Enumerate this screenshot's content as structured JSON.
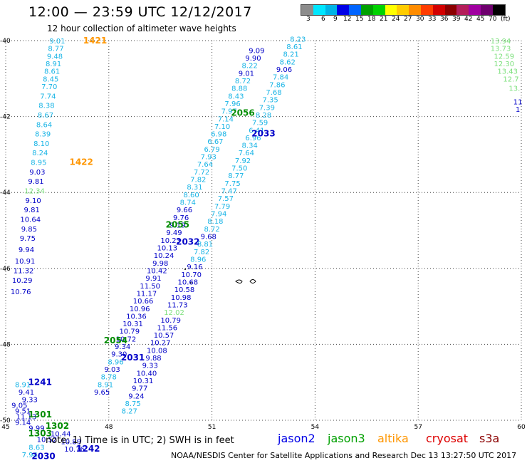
{
  "header": {
    "title": "12:00 — 23:59 UTC 12/12/2017",
    "subtitle": "12 hour collection of altimeter wave heights"
  },
  "legend": {
    "colors": [
      "#8c8c8c",
      "#00e6ff",
      "#00b4e6",
      "#0000e6",
      "#0064ff",
      "#00a000",
      "#00d200",
      "#ffff00",
      "#ffcc00",
      "#ff8c00",
      "#ff3c00",
      "#d20000",
      "#8b0000",
      "#b41e5a",
      "#a000a0",
      "#6e006e",
      "#000000"
    ],
    "labels": [
      "3",
      "6",
      "9",
      "12",
      "15",
      "18",
      "21",
      "24",
      "27",
      "30",
      "33",
      "36",
      "39",
      "42",
      "45",
      "70",
      "(ft)"
    ]
  },
  "axes": {
    "x_ticks": [
      "45",
      "48",
      "51",
      "54",
      "57",
      "60"
    ],
    "y_ticks": [
      "-40",
      "-42",
      "-44",
      "-46",
      "-48",
      "-50"
    ]
  },
  "map_data": {
    "colors": {
      "j2": "#0000c8",
      "cy": "#18b4e6",
      "gr": "#008c00",
      "lg": "#7ce07c",
      "or": "#ff9600"
    },
    "labels": [
      {
        "lon": 46.5,
        "lat": -40.0,
        "t": "9.01",
        "c": "cy"
      },
      {
        "lon": 46.46,
        "lat": -40.2,
        "t": "8.77",
        "c": "cy"
      },
      {
        "lon": 46.43,
        "lat": -40.4,
        "t": "9.48",
        "c": "cy"
      },
      {
        "lon": 46.39,
        "lat": -40.6,
        "t": "8.91",
        "c": "cy"
      },
      {
        "lon": 46.35,
        "lat": -40.8,
        "t": "8.61",
        "c": "cy"
      },
      {
        "lon": 46.31,
        "lat": -41.0,
        "t": "8.45",
        "c": "cy"
      },
      {
        "lon": 46.27,
        "lat": -41.2,
        "t": "7.70",
        "c": "cy"
      },
      {
        "lon": 46.23,
        "lat": -41.45,
        "t": "7.74",
        "c": "cy"
      },
      {
        "lon": 46.19,
        "lat": -41.7,
        "t": "8.38",
        "c": "cy"
      },
      {
        "lon": 46.16,
        "lat": -41.95,
        "t": "8.67",
        "c": "cy"
      },
      {
        "lon": 46.12,
        "lat": -42.2,
        "t": "8.64",
        "c": "cy"
      },
      {
        "lon": 46.08,
        "lat": -42.45,
        "t": "8.39",
        "c": "cy"
      },
      {
        "lon": 46.04,
        "lat": -42.7,
        "t": "8.10",
        "c": "cy"
      },
      {
        "lon": 46.0,
        "lat": -42.95,
        "t": "8.24",
        "c": "cy"
      },
      {
        "lon": 45.96,
        "lat": -43.2,
        "t": "8.95",
        "c": "cy"
      },
      {
        "lon": 45.92,
        "lat": -43.45,
        "t": "9.03",
        "c": "j2"
      },
      {
        "lon": 45.88,
        "lat": -43.7,
        "t": "9.81",
        "c": "j2"
      },
      {
        "lon": 45.84,
        "lat": -43.95,
        "t": "12.34",
        "c": "lg"
      },
      {
        "lon": 45.8,
        "lat": -44.2,
        "t": "9.10",
        "c": "j2"
      },
      {
        "lon": 45.76,
        "lat": -44.45,
        "t": "9.81",
        "c": "j2"
      },
      {
        "lon": 45.72,
        "lat": -44.7,
        "t": "10.64",
        "c": "j2"
      },
      {
        "lon": 45.68,
        "lat": -44.95,
        "t": "9.85",
        "c": "j2"
      },
      {
        "lon": 45.64,
        "lat": -45.2,
        "t": "9.75",
        "c": "j2"
      },
      {
        "lon": 45.6,
        "lat": -45.5,
        "t": "9.94",
        "c": "j2"
      },
      {
        "lon": 45.56,
        "lat": -45.8,
        "t": "10.91",
        "c": "j2"
      },
      {
        "lon": 45.52,
        "lat": -46.05,
        "t": "11.32",
        "c": "j2"
      },
      {
        "lon": 45.48,
        "lat": -46.3,
        "t": "10.29",
        "c": "j2"
      },
      {
        "lon": 45.44,
        "lat": -46.6,
        "t": "10.76",
        "c": "j2"
      },
      {
        "lon": 47.6,
        "lat": -40.0,
        "t": "1421",
        "c": "or",
        "b": true
      },
      {
        "lon": 47.2,
        "lat": -43.2,
        "t": "1422",
        "c": "or",
        "b": true
      },
      {
        "lon": 53.5,
        "lat": -39.95,
        "t": "8.23",
        "c": "cy"
      },
      {
        "lon": 53.4,
        "lat": -40.15,
        "t": "8.61",
        "c": "cy"
      },
      {
        "lon": 53.3,
        "lat": -40.35,
        "t": "8.21",
        "c": "cy"
      },
      {
        "lon": 53.2,
        "lat": -40.55,
        "t": "8.62",
        "c": "cy"
      },
      {
        "lon": 53.1,
        "lat": -40.75,
        "t": "9.06",
        "c": "j2"
      },
      {
        "lon": 53.0,
        "lat": -40.95,
        "t": "7.84",
        "c": "cy"
      },
      {
        "lon": 52.9,
        "lat": -41.15,
        "t": "7.86",
        "c": "cy"
      },
      {
        "lon": 52.8,
        "lat": -41.35,
        "t": "7.68",
        "c": "cy"
      },
      {
        "lon": 52.7,
        "lat": -41.55,
        "t": "7.35",
        "c": "cy"
      },
      {
        "lon": 52.6,
        "lat": -41.75,
        "t": "7.39",
        "c": "cy"
      },
      {
        "lon": 52.5,
        "lat": -41.95,
        "t": "8.28",
        "c": "cy"
      },
      {
        "lon": 52.4,
        "lat": -42.15,
        "t": "7.59",
        "c": "cy"
      },
      {
        "lon": 52.3,
        "lat": -42.35,
        "t": "6.41",
        "c": "cy"
      },
      {
        "lon": 52.2,
        "lat": -42.55,
        "t": "6.96",
        "c": "cy"
      },
      {
        "lon": 52.1,
        "lat": -42.75,
        "t": "8.34",
        "c": "cy"
      },
      {
        "lon": 52.0,
        "lat": -42.95,
        "t": "7.64",
        "c": "cy"
      },
      {
        "lon": 51.9,
        "lat": -43.15,
        "t": "7.92",
        "c": "cy"
      },
      {
        "lon": 51.8,
        "lat": -43.35,
        "t": "7.50",
        "c": "cy"
      },
      {
        "lon": 51.7,
        "lat": -43.55,
        "t": "8.77",
        "c": "cy"
      },
      {
        "lon": 51.6,
        "lat": -43.75,
        "t": "7.75",
        "c": "cy"
      },
      {
        "lon": 51.5,
        "lat": -43.95,
        "t": "7.47",
        "c": "cy"
      },
      {
        "lon": 51.4,
        "lat": -44.15,
        "t": "7.57",
        "c": "cy"
      },
      {
        "lon": 51.3,
        "lat": -44.35,
        "t": "7.79",
        "c": "cy"
      },
      {
        "lon": 51.2,
        "lat": -44.55,
        "t": "7.94",
        "c": "cy"
      },
      {
        "lon": 51.1,
        "lat": -44.75,
        "t": "8.18",
        "c": "cy"
      },
      {
        "lon": 51.0,
        "lat": -44.95,
        "t": "8.72",
        "c": "cy"
      },
      {
        "lon": 50.9,
        "lat": -45.15,
        "t": "9.68",
        "c": "j2"
      },
      {
        "lon": 50.8,
        "lat": -45.35,
        "t": "8.81",
        "c": "cy"
      },
      {
        "lon": 50.7,
        "lat": -45.55,
        "t": "7.82",
        "c": "cy"
      },
      {
        "lon": 50.6,
        "lat": -45.75,
        "t": "8.96",
        "c": "cy"
      },
      {
        "lon": 50.5,
        "lat": -45.95,
        "t": "9.16",
        "c": "j2"
      },
      {
        "lon": 50.4,
        "lat": -46.15,
        "t": "10.70",
        "c": "j2"
      },
      {
        "lon": 50.3,
        "lat": -46.35,
        "t": "10.68",
        "c": "j2"
      },
      {
        "lon": 50.2,
        "lat": -46.55,
        "t": "10.58",
        "c": "j2"
      },
      {
        "lon": 50.1,
        "lat": -46.75,
        "t": "10.98",
        "c": "j2"
      },
      {
        "lon": 50.0,
        "lat": -46.95,
        "t": "11.73",
        "c": "j2"
      },
      {
        "lon": 49.9,
        "lat": -47.15,
        "t": "12.02",
        "c": "lg"
      },
      {
        "lon": 49.8,
        "lat": -47.35,
        "t": "10.79",
        "c": "j2"
      },
      {
        "lon": 49.7,
        "lat": -47.55,
        "t": "11.56",
        "c": "j2"
      },
      {
        "lon": 49.6,
        "lat": -47.75,
        "t": "10.57",
        "c": "j2"
      },
      {
        "lon": 49.5,
        "lat": -47.95,
        "t": "10.27",
        "c": "j2"
      },
      {
        "lon": 49.4,
        "lat": -48.15,
        "t": "10.08",
        "c": "j2"
      },
      {
        "lon": 49.3,
        "lat": -48.35,
        "t": "9.88",
        "c": "j2"
      },
      {
        "lon": 49.2,
        "lat": -48.55,
        "t": "9.33",
        "c": "j2"
      },
      {
        "lon": 49.1,
        "lat": -48.75,
        "t": "10.40",
        "c": "j2"
      },
      {
        "lon": 49.0,
        "lat": -48.95,
        "t": "10.31",
        "c": "j2"
      },
      {
        "lon": 48.9,
        "lat": -49.15,
        "t": "9.77",
        "c": "j2"
      },
      {
        "lon": 48.8,
        "lat": -49.35,
        "t": "9.24",
        "c": "j2"
      },
      {
        "lon": 48.7,
        "lat": -49.55,
        "t": "8.75",
        "c": "cy"
      },
      {
        "lon": 48.6,
        "lat": -49.75,
        "t": "8.27",
        "c": "cy"
      },
      {
        "lon": 52.3,
        "lat": -40.25,
        "t": "9.09",
        "c": "j2"
      },
      {
        "lon": 52.2,
        "lat": -40.45,
        "t": "9.90",
        "c": "j2"
      },
      {
        "lon": 52.1,
        "lat": -40.65,
        "t": "8.22",
        "c": "cy"
      },
      {
        "lon": 52.0,
        "lat": -40.85,
        "t": "9.01",
        "c": "j2"
      },
      {
        "lon": 51.9,
        "lat": -41.05,
        "t": "8.72",
        "c": "cy"
      },
      {
        "lon": 51.8,
        "lat": -41.25,
        "t": "8.88",
        "c": "cy"
      },
      {
        "lon": 51.7,
        "lat": -41.45,
        "t": "8.43",
        "c": "cy"
      },
      {
        "lon": 51.6,
        "lat": -41.65,
        "t": "7.96",
        "c": "cy"
      },
      {
        "lon": 51.5,
        "lat": -41.85,
        "t": "7.97",
        "c": "cy"
      },
      {
        "lon": 51.4,
        "lat": -42.05,
        "t": "7.14",
        "c": "cy"
      },
      {
        "lon": 51.3,
        "lat": -42.25,
        "t": "7.10",
        "c": "cy"
      },
      {
        "lon": 51.2,
        "lat": -42.45,
        "t": "6.98",
        "c": "cy"
      },
      {
        "lon": 51.1,
        "lat": -42.65,
        "t": "6.67",
        "c": "cy"
      },
      {
        "lon": 51.0,
        "lat": -42.85,
        "t": "6.79",
        "c": "cy"
      },
      {
        "lon": 50.9,
        "lat": -43.05,
        "t": "7.93",
        "c": "cy"
      },
      {
        "lon": 50.8,
        "lat": -43.25,
        "t": "7.64",
        "c": "cy"
      },
      {
        "lon": 50.7,
        "lat": -43.45,
        "t": "7.72",
        "c": "cy"
      },
      {
        "lon": 50.6,
        "lat": -43.65,
        "t": "7.82",
        "c": "cy"
      },
      {
        "lon": 50.5,
        "lat": -43.85,
        "t": "8.31",
        "c": "cy"
      },
      {
        "lon": 50.4,
        "lat": -44.05,
        "t": "8.60",
        "c": "cy"
      },
      {
        "lon": 50.3,
        "lat": -44.25,
        "t": "8.74",
        "c": "cy"
      },
      {
        "lon": 50.2,
        "lat": -44.45,
        "t": "9.66",
        "c": "j2"
      },
      {
        "lon": 50.1,
        "lat": -44.65,
        "t": "9.76",
        "c": "j2"
      },
      {
        "lon": 50.0,
        "lat": -44.85,
        "t": "9.19",
        "c": "j2"
      },
      {
        "lon": 49.9,
        "lat": -45.05,
        "t": "9.49",
        "c": "j2"
      },
      {
        "lon": 49.8,
        "lat": -45.25,
        "t": "10.23",
        "c": "j2"
      },
      {
        "lon": 49.7,
        "lat": -45.45,
        "t": "10.13",
        "c": "j2"
      },
      {
        "lon": 49.6,
        "lat": -45.65,
        "t": "10.24",
        "c": "j2"
      },
      {
        "lon": 49.5,
        "lat": -45.85,
        "t": "9.98",
        "c": "j2"
      },
      {
        "lon": 49.4,
        "lat": -46.05,
        "t": "10.42",
        "c": "j2"
      },
      {
        "lon": 49.3,
        "lat": -46.25,
        "t": "9.91",
        "c": "j2"
      },
      {
        "lon": 49.2,
        "lat": -46.45,
        "t": "11.50",
        "c": "j2"
      },
      {
        "lon": 49.1,
        "lat": -46.65,
        "t": "11.17",
        "c": "j2"
      },
      {
        "lon": 49.0,
        "lat": -46.85,
        "t": "10.66",
        "c": "j2"
      },
      {
        "lon": 48.9,
        "lat": -47.05,
        "t": "10.96",
        "c": "j2"
      },
      {
        "lon": 48.8,
        "lat": -47.25,
        "t": "10.36",
        "c": "j2"
      },
      {
        "lon": 48.7,
        "lat": -47.45,
        "t": "10.31",
        "c": "j2"
      },
      {
        "lon": 48.6,
        "lat": -47.65,
        "t": "10.79",
        "c": "j2"
      },
      {
        "lon": 48.5,
        "lat": -47.85,
        "t": "10.72",
        "c": "j2"
      },
      {
        "lon": 48.4,
        "lat": -48.05,
        "t": "9.34",
        "c": "j2"
      },
      {
        "lon": 48.3,
        "lat": -48.25,
        "t": "9.30",
        "c": "j2"
      },
      {
        "lon": 48.2,
        "lat": -48.45,
        "t": "8.96",
        "c": "cy"
      },
      {
        "lon": 48.1,
        "lat": -48.65,
        "t": "9.03",
        "c": "j2"
      },
      {
        "lon": 48.0,
        "lat": -48.85,
        "t": "8.78",
        "c": "cy"
      },
      {
        "lon": 47.9,
        "lat": -49.05,
        "t": "8.91",
        "c": "cy"
      },
      {
        "lon": 47.8,
        "lat": -49.25,
        "t": "9.65",
        "c": "j2"
      },
      {
        "lon": 45.5,
        "lat": -49.05,
        "t": "8.91",
        "c": "cy"
      },
      {
        "lon": 45.6,
        "lat": -49.25,
        "t": "9.41",
        "c": "j2"
      },
      {
        "lon": 45.7,
        "lat": -49.45,
        "t": "9.33",
        "c": "j2"
      },
      {
        "lon": 45.4,
        "lat": -49.6,
        "t": "9.05",
        "c": "j2"
      },
      {
        "lon": 45.5,
        "lat": -49.75,
        "t": "9.51",
        "c": "j2"
      },
      {
        "lon": 45.6,
        "lat": -49.9,
        "t": "11.13",
        "c": "j2"
      },
      {
        "lon": 45.5,
        "lat": -50.05,
        "t": "9.14",
        "c": "j2"
      },
      {
        "lon": 45.9,
        "lat": -50.2,
        "t": "9.99",
        "c": "j2"
      },
      {
        "lon": 46.6,
        "lat": -50.35,
        "t": "10.44",
        "c": "j2"
      },
      {
        "lon": 46.2,
        "lat": -50.5,
        "t": "10.52",
        "c": "j2"
      },
      {
        "lon": 46.9,
        "lat": -50.55,
        "t": "10.89",
        "c": "j2"
      },
      {
        "lon": 47.0,
        "lat": -50.75,
        "t": "10.76",
        "c": "j2"
      },
      {
        "lon": 45.9,
        "lat": -50.7,
        "t": "8.63",
        "c": "cy"
      },
      {
        "lon": 45.7,
        "lat": -50.9,
        "t": "7.94",
        "c": "cy"
      },
      {
        "lon": 46.0,
        "lat": -49.85,
        "t": "1301",
        "c": "gr",
        "b": true
      },
      {
        "lon": 46.5,
        "lat": -50.15,
        "t": "1302",
        "c": "gr",
        "b": true
      },
      {
        "lon": 46.0,
        "lat": -50.35,
        "t": "1303",
        "c": "gr",
        "b": true
      },
      {
        "lon": 46.0,
        "lat": -49.0,
        "t": "1241",
        "c": "j2",
        "b": true
      },
      {
        "lon": 47.4,
        "lat": -50.75,
        "t": "1242",
        "c": "j2",
        "b": true
      },
      {
        "lon": 46.1,
        "lat": -50.95,
        "t": "2030",
        "c": "j2",
        "b": true
      },
      {
        "lon": 48.2,
        "lat": -47.9,
        "t": "2054",
        "c": "gr",
        "b": true
      },
      {
        "lon": 48.7,
        "lat": -48.35,
        "t": "2031",
        "c": "j2",
        "b": true
      },
      {
        "lon": 50.0,
        "lat": -44.85,
        "t": "2055",
        "c": "gr",
        "b": true
      },
      {
        "lon": 50.3,
        "lat": -45.3,
        "t": "2032",
        "c": "j2",
        "b": true
      },
      {
        "lon": 51.9,
        "lat": -41.9,
        "t": "2056",
        "c": "gr",
        "b": true
      },
      {
        "lon": 52.5,
        "lat": -42.45,
        "t": "2033",
        "c": "j2",
        "b": true
      },
      {
        "lon": 59.4,
        "lat": -40.0,
        "t": "13.94",
        "c": "lg"
      },
      {
        "lon": 59.4,
        "lat": -40.2,
        "t": "13.73",
        "c": "lg"
      },
      {
        "lon": 59.5,
        "lat": -40.4,
        "t": "12.59",
        "c": "lg"
      },
      {
        "lon": 59.5,
        "lat": -40.6,
        "t": "12.30",
        "c": "lg"
      },
      {
        "lon": 59.6,
        "lat": -40.8,
        "t": "13.43",
        "c": "lg"
      },
      {
        "lon": 59.7,
        "lat": -41.0,
        "t": "12.7",
        "c": "lg"
      },
      {
        "lon": 59.8,
        "lat": -41.25,
        "t": "13.",
        "c": "lg"
      },
      {
        "lon": 59.9,
        "lat": -41.6,
        "t": "11",
        "c": "j2"
      },
      {
        "lon": 59.9,
        "lat": -41.8,
        "t": "1",
        "c": "j2"
      }
    ]
  },
  "footer": {
    "note": "note:  1) Time is in UTC;  2) SWH is in feet",
    "satellites": [
      {
        "name": "jason2",
        "color": "#0000e6"
      },
      {
        "name": "jason3",
        "color": "#00a000"
      },
      {
        "name": "altika",
        "color": "#ff9600"
      },
      {
        "name": "cryosat",
        "color": "#dd0000"
      },
      {
        "name": "s3a",
        "color": "#8b0000"
      }
    ],
    "credit": "NOAA/NESDIS Center for Satellite Applications and Research      Dec 13 13:27:50 UTC 2017"
  }
}
